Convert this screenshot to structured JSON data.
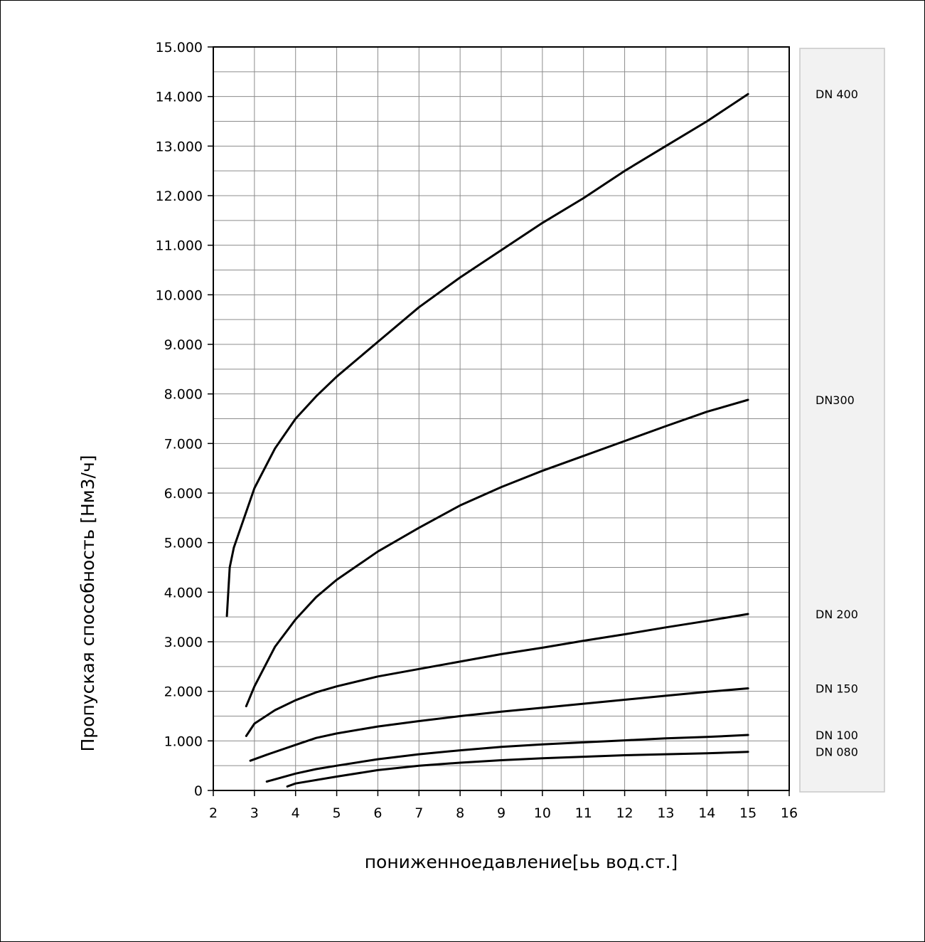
{
  "chart_data": {
    "type": "line",
    "xlabel": "пониженноедавление[ьь вод.ст.]",
    "ylabel": "Пропуская способность [Нм3/ч]",
    "xlim": [
      2,
      16
    ],
    "ylim": [
      0,
      15000
    ],
    "x_ticks": [
      "2",
      "3",
      "4",
      "5",
      "6",
      "7",
      "8",
      "9",
      "10",
      "11",
      "12",
      "13",
      "14",
      "15",
      "16"
    ],
    "y_ticks": [
      "0",
      "1.000",
      "2.000",
      "3.000",
      "4.000",
      "5.000",
      "6.000",
      "7.000",
      "8.000",
      "9.000",
      "10.000",
      "11.000",
      "12.000",
      "13.000",
      "14.000",
      "15.000"
    ],
    "grid": true,
    "legend_position": "right",
    "line_color": "#000000",
    "series": [
      {
        "name": "DN 400",
        "points": [
          [
            2.33,
            3520
          ],
          [
            2.4,
            4500
          ],
          [
            2.5,
            4900
          ],
          [
            3,
            6100
          ],
          [
            3.5,
            6900
          ],
          [
            4,
            7500
          ],
          [
            4.5,
            7950
          ],
          [
            5,
            8350
          ],
          [
            6,
            9050
          ],
          [
            7,
            9750
          ],
          [
            8,
            10350
          ],
          [
            9,
            10900
          ],
          [
            10,
            11450
          ],
          [
            11,
            11950
          ],
          [
            12,
            12500
          ],
          [
            13,
            13000
          ],
          [
            14,
            13500
          ],
          [
            15,
            14050
          ]
        ]
      },
      {
        "name": "DN300",
        "points": [
          [
            2.8,
            1700
          ],
          [
            3,
            2100
          ],
          [
            3.5,
            2900
          ],
          [
            4,
            3450
          ],
          [
            4.5,
            3900
          ],
          [
            5,
            4250
          ],
          [
            6,
            4820
          ],
          [
            7,
            5300
          ],
          [
            8,
            5750
          ],
          [
            9,
            6120
          ],
          [
            10,
            6450
          ],
          [
            11,
            6750
          ],
          [
            12,
            7050
          ],
          [
            13,
            7350
          ],
          [
            14,
            7640
          ],
          [
            15,
            7880
          ]
        ]
      },
      {
        "name": "DN 200",
        "points": [
          [
            2.8,
            1100
          ],
          [
            3,
            1350
          ],
          [
            3.5,
            1620
          ],
          [
            4,
            1820
          ],
          [
            4.5,
            1980
          ],
          [
            5,
            2100
          ],
          [
            6,
            2300
          ],
          [
            7,
            2450
          ],
          [
            8,
            2600
          ],
          [
            9,
            2750
          ],
          [
            10,
            2880
          ],
          [
            11,
            3020
          ],
          [
            12,
            3150
          ],
          [
            13,
            3290
          ],
          [
            14,
            3420
          ],
          [
            15,
            3560
          ]
        ]
      },
      {
        "name": "DN 150",
        "points": [
          [
            2.9,
            600
          ],
          [
            3.3,
            720
          ],
          [
            4,
            920
          ],
          [
            4.5,
            1060
          ],
          [
            5,
            1150
          ],
          [
            6,
            1290
          ],
          [
            7,
            1400
          ],
          [
            8,
            1500
          ],
          [
            9,
            1590
          ],
          [
            10,
            1670
          ],
          [
            11,
            1750
          ],
          [
            12,
            1830
          ],
          [
            13,
            1910
          ],
          [
            14,
            1990
          ],
          [
            15,
            2060
          ]
        ]
      },
      {
        "name": "DN 100",
        "points": [
          [
            3.3,
            180
          ],
          [
            4,
            340
          ],
          [
            4.5,
            430
          ],
          [
            5,
            500
          ],
          [
            6,
            630
          ],
          [
            7,
            730
          ],
          [
            8,
            810
          ],
          [
            9,
            880
          ],
          [
            10,
            930
          ],
          [
            11,
            970
          ],
          [
            12,
            1010
          ],
          [
            13,
            1050
          ],
          [
            14,
            1080
          ],
          [
            15,
            1120
          ]
        ]
      },
      {
        "name": "DN 080",
        "points": [
          [
            3.8,
            80
          ],
          [
            4,
            140
          ],
          [
            5,
            280
          ],
          [
            6,
            410
          ],
          [
            7,
            500
          ],
          [
            8,
            560
          ],
          [
            9,
            610
          ],
          [
            10,
            650
          ],
          [
            11,
            680
          ],
          [
            12,
            710
          ],
          [
            13,
            730
          ],
          [
            14,
            750
          ],
          [
            15,
            780
          ]
        ]
      }
    ]
  }
}
